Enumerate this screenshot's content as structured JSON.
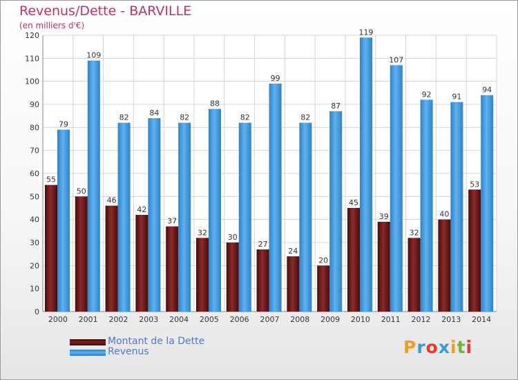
{
  "chart_data": {
    "type": "bar",
    "title": "Revenus/Dette - BARVILLE",
    "subtitle": "(en milliers d'€)",
    "categories": [
      "2000",
      "2001",
      "2002",
      "2003",
      "2004",
      "2005",
      "2006",
      "2007",
      "2008",
      "2009",
      "2010",
      "2011",
      "2012",
      "2013",
      "2014"
    ],
    "series": [
      {
        "name": "Montant de la Dette",
        "color": "#7a1f1f",
        "values": [
          55,
          50,
          46,
          42,
          37,
          32,
          30,
          27,
          24,
          20,
          45,
          39,
          32,
          40,
          53
        ]
      },
      {
        "name": "Revenus",
        "color": "#4a9fe0",
        "values": [
          79,
          109,
          82,
          84,
          82,
          88,
          82,
          99,
          82,
          87,
          119,
          107,
          92,
          91,
          94
        ]
      }
    ],
    "ylim": [
      0,
      120
    ],
    "yticks": [
      0,
      10,
      20,
      30,
      40,
      50,
      60,
      70,
      80,
      90,
      100,
      110,
      120
    ],
    "grid": true,
    "legend_position": "bottom-left"
  },
  "brand": {
    "text": "Proxiti",
    "letters": [
      "P",
      "r",
      "o",
      "x",
      "i",
      "t",
      "i"
    ],
    "colors": [
      "#f39c1e",
      "#3a9ad9",
      "#e8392c",
      "#3a9ad9",
      "#f39c1e",
      "#6fb43f",
      "#e8392c"
    ]
  }
}
